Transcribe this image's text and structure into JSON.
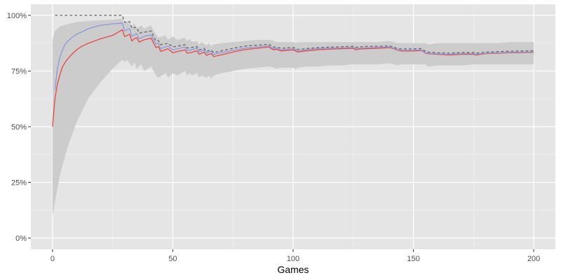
{
  "chart_data": {
    "type": "line",
    "title": "",
    "xlabel": "Games",
    "ylabel": "",
    "xlim": [
      -9,
      209
    ],
    "ylim": [
      -0.05,
      1.05
    ],
    "x_ticks": [
      0,
      50,
      100,
      150,
      200
    ],
    "x_tick_labels": [
      "0",
      "50",
      "100",
      "150",
      "200"
    ],
    "y_ticks": [
      0,
      0.25,
      0.5,
      0.75,
      1.0
    ],
    "y_tick_labels": [
      "0%",
      "25%",
      "50%",
      "75%",
      "100%"
    ],
    "grid": true,
    "legend": "none",
    "colors": {
      "panel_background": "#e5e5e5",
      "grid_major": "#ffffff",
      "grid_minor": "#f2f2f2",
      "ribbon": "#cccccc",
      "red_line": "#e8473f",
      "blue_line": "#8f96e0",
      "dashed_line": "#666666"
    },
    "series": [
      {
        "style": "ribbon",
        "x": [
          0,
          1,
          3,
          6,
          10,
          15,
          20,
          25,
          29,
          30,
          31,
          33,
          34,
          35,
          37,
          38,
          41,
          42,
          43,
          44,
          47,
          48,
          50,
          52,
          55,
          56,
          57,
          58,
          60,
          61,
          62,
          64,
          65,
          66,
          67,
          70,
          75,
          80,
          85,
          90,
          92,
          93,
          95,
          100,
          101,
          102,
          105,
          110,
          115,
          120,
          125,
          130,
          135,
          140,
          142,
          143,
          145,
          150,
          155,
          156,
          160,
          165,
          170,
          175,
          180,
          185,
          190,
          195,
          200
        ],
        "upper": [
          0.89,
          0.93,
          0.95,
          0.96,
          0.97,
          0.975,
          0.978,
          0.98,
          0.985,
          0.96,
          0.975,
          0.95,
          0.965,
          0.94,
          0.955,
          0.94,
          0.955,
          0.93,
          0.915,
          0.9,
          0.91,
          0.89,
          0.905,
          0.89,
          0.9,
          0.885,
          0.895,
          0.88,
          0.885,
          0.87,
          0.88,
          0.865,
          0.875,
          0.86,
          0.87,
          0.875,
          0.88,
          0.885,
          0.89,
          0.89,
          0.885,
          0.88,
          0.88,
          0.88,
          0.875,
          0.878,
          0.88,
          0.88,
          0.88,
          0.88,
          0.88,
          0.88,
          0.88,
          0.885,
          0.88,
          0.875,
          0.875,
          0.875,
          0.875,
          0.87,
          0.875,
          0.875,
          0.875,
          0.875,
          0.875,
          0.875,
          0.88,
          0.88,
          0.88
        ],
        "lower": [
          0.1,
          0.16,
          0.28,
          0.4,
          0.52,
          0.63,
          0.7,
          0.76,
          0.8,
          0.79,
          0.8,
          0.77,
          0.79,
          0.76,
          0.78,
          0.75,
          0.77,
          0.75,
          0.73,
          0.72,
          0.74,
          0.72,
          0.74,
          0.73,
          0.75,
          0.73,
          0.74,
          0.73,
          0.74,
          0.72,
          0.73,
          0.72,
          0.73,
          0.715,
          0.73,
          0.74,
          0.75,
          0.76,
          0.765,
          0.77,
          0.765,
          0.76,
          0.765,
          0.765,
          0.76,
          0.765,
          0.77,
          0.77,
          0.775,
          0.775,
          0.78,
          0.78,
          0.78,
          0.785,
          0.78,
          0.775,
          0.78,
          0.78,
          0.78,
          0.77,
          0.775,
          0.775,
          0.775,
          0.78,
          0.78,
          0.78,
          0.78,
          0.78,
          0.78
        ]
      },
      {
        "style": "solid-red",
        "x": [
          0,
          1,
          2,
          3,
          4,
          5,
          6,
          8,
          10,
          12,
          15,
          18,
          20,
          25,
          29,
          30,
          31,
          32,
          33,
          34,
          35,
          36,
          37,
          38,
          39,
          40,
          41,
          42,
          43,
          44,
          45,
          46,
          47,
          48,
          50,
          52,
          54,
          55,
          56,
          58,
          59,
          60,
          61,
          62,
          63,
          64,
          65,
          66,
          67,
          70,
          75,
          80,
          85,
          90,
          91,
          92,
          93,
          95,
          100,
          101,
          102,
          105,
          110,
          115,
          120,
          125,
          126,
          127,
          130,
          135,
          140,
          142,
          143,
          145,
          150,
          153,
          154,
          155,
          156,
          160,
          165,
          170,
          175,
          176,
          180,
          185,
          190,
          195,
          200
        ],
        "y": [
          0.5,
          0.625,
          0.69,
          0.73,
          0.765,
          0.785,
          0.8,
          0.825,
          0.845,
          0.86,
          0.875,
          0.887,
          0.895,
          0.91,
          0.935,
          0.905,
          0.91,
          0.915,
          0.885,
          0.895,
          0.9,
          0.88,
          0.885,
          0.89,
          0.892,
          0.895,
          0.897,
          0.875,
          0.855,
          0.86,
          0.838,
          0.842,
          0.846,
          0.85,
          0.832,
          0.838,
          0.842,
          0.845,
          0.83,
          0.834,
          0.838,
          0.84,
          0.825,
          0.83,
          0.835,
          0.82,
          0.825,
          0.828,
          0.815,
          0.822,
          0.835,
          0.846,
          0.852,
          0.858,
          0.85,
          0.845,
          0.848,
          0.84,
          0.845,
          0.84,
          0.835,
          0.84,
          0.845,
          0.848,
          0.85,
          0.852,
          0.845,
          0.848,
          0.85,
          0.852,
          0.855,
          0.85,
          0.845,
          0.84,
          0.84,
          0.842,
          0.838,
          0.83,
          0.828,
          0.825,
          0.822,
          0.825,
          0.825,
          0.822,
          0.828,
          0.83,
          0.832,
          0.833,
          0.834
        ]
      },
      {
        "style": "solid-blue",
        "x": [
          1,
          2,
          3,
          4,
          5,
          6,
          8,
          10,
          12,
          15,
          18,
          20,
          25,
          29,
          30,
          31,
          32,
          33,
          34,
          35,
          36,
          37,
          38,
          39,
          40,
          41,
          42,
          43,
          44,
          45,
          46,
          47,
          48,
          50,
          52,
          54,
          55,
          56,
          58,
          59,
          60,
          61,
          62,
          63,
          64,
          65,
          66,
          67,
          70,
          75,
          80,
          85,
          90,
          91,
          92,
          93,
          95,
          100,
          101,
          102,
          105,
          110,
          115,
          120,
          125,
          126,
          127,
          130,
          135,
          140,
          142,
          143,
          145,
          150,
          153,
          154,
          155,
          156,
          160,
          165,
          170,
          175,
          176,
          180,
          185,
          190,
          195,
          200
        ],
        "y": [
          0.665,
          0.76,
          0.81,
          0.84,
          0.865,
          0.88,
          0.9,
          0.915,
          0.925,
          0.94,
          0.95,
          0.955,
          0.962,
          0.965,
          0.93,
          0.935,
          0.94,
          0.905,
          0.912,
          0.918,
          0.895,
          0.9,
          0.905,
          0.908,
          0.91,
          0.912,
          0.89,
          0.87,
          0.875,
          0.85,
          0.855,
          0.858,
          0.862,
          0.845,
          0.85,
          0.855,
          0.858,
          0.842,
          0.846,
          0.85,
          0.852,
          0.836,
          0.84,
          0.845,
          0.83,
          0.835,
          0.838,
          0.825,
          0.832,
          0.843,
          0.853,
          0.858,
          0.863,
          0.855,
          0.85,
          0.852,
          0.845,
          0.85,
          0.845,
          0.84,
          0.845,
          0.85,
          0.852,
          0.854,
          0.856,
          0.85,
          0.852,
          0.854,
          0.856,
          0.858,
          0.852,
          0.847,
          0.843,
          0.843,
          0.845,
          0.84,
          0.832,
          0.83,
          0.827,
          0.825,
          0.828,
          0.828,
          0.825,
          0.83,
          0.832,
          0.834,
          0.835,
          0.836
        ]
      },
      {
        "style": "dashed",
        "x": [
          1,
          29,
          30,
          31,
          32,
          33,
          34,
          35,
          36,
          37,
          38,
          39,
          40,
          41,
          42,
          43,
          44,
          45,
          46,
          47,
          48,
          50,
          52,
          54,
          55,
          56,
          58,
          59,
          60,
          61,
          62,
          63,
          64,
          65,
          66,
          67,
          70,
          75,
          80,
          85,
          90,
          91,
          92,
          93,
          95,
          100,
          101,
          102,
          105,
          110,
          115,
          120,
          125,
          126,
          127,
          130,
          135,
          140,
          142,
          143,
          145,
          150,
          153,
          154,
          155,
          156,
          160,
          165,
          170,
          175,
          176,
          180,
          185,
          190,
          195,
          200
        ],
        "y": [
          1.0,
          1.0,
          0.968,
          0.97,
          0.972,
          0.943,
          0.945,
          0.946,
          0.92,
          0.922,
          0.924,
          0.926,
          0.927,
          0.93,
          0.905,
          0.885,
          0.887,
          0.868,
          0.87,
          0.872,
          0.874,
          0.858,
          0.862,
          0.866,
          0.868,
          0.853,
          0.856,
          0.858,
          0.86,
          0.845,
          0.848,
          0.852,
          0.838,
          0.842,
          0.844,
          0.833,
          0.84,
          0.852,
          0.862,
          0.866,
          0.87,
          0.862,
          0.857,
          0.858,
          0.852,
          0.856,
          0.852,
          0.847,
          0.85,
          0.855,
          0.857,
          0.859,
          0.861,
          0.856,
          0.858,
          0.86,
          0.861,
          0.863,
          0.857,
          0.852,
          0.849,
          0.849,
          0.851,
          0.846,
          0.838,
          0.835,
          0.832,
          0.83,
          0.833,
          0.833,
          0.83,
          0.835,
          0.837,
          0.839,
          0.84,
          0.841
        ]
      }
    ]
  }
}
